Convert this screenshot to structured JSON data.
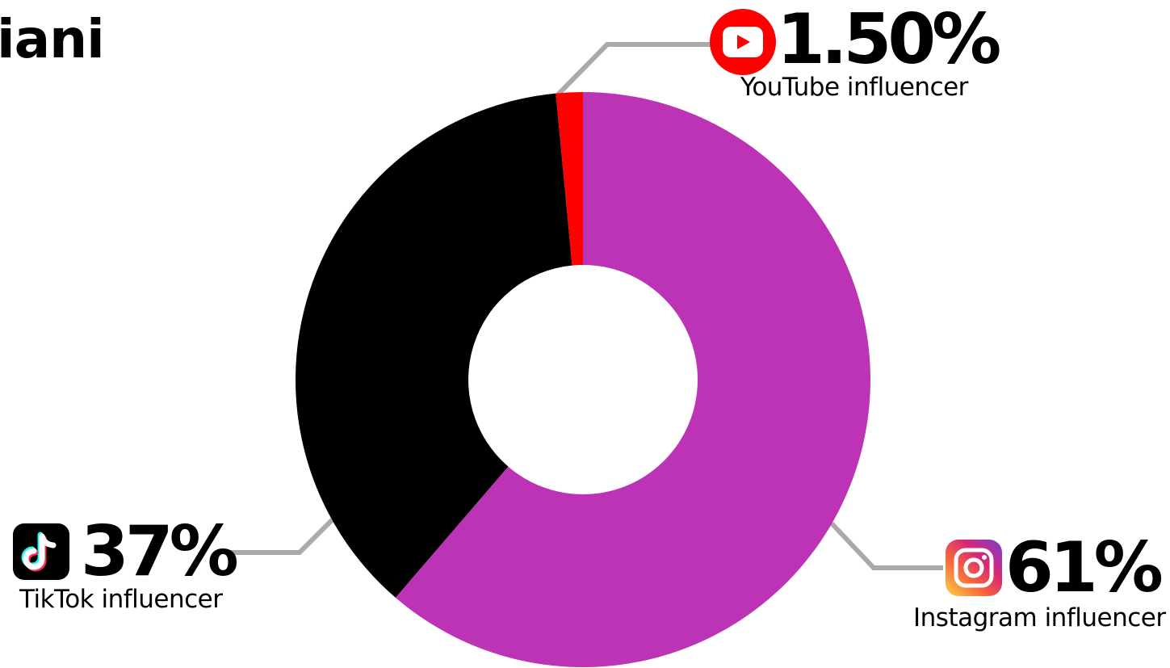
{
  "header": {
    "title": "iani"
  },
  "chart_data": {
    "type": "pie",
    "donut": true,
    "title": "iani",
    "slices": [
      {
        "label": "Instagram influencer",
        "value": 61,
        "display": "61%",
        "color": "#bc33b5",
        "icon": "instagram-icon"
      },
      {
        "label": "TikTok influencer",
        "value": 37,
        "display": "37%",
        "color": "#000000",
        "icon": "tiktok-icon"
      },
      {
        "label": "YouTube influencer",
        "value": 1.5,
        "display": "1.50%",
        "color": "#ff0000",
        "icon": "youtube-icon"
      }
    ],
    "slice_order": "clockwise from top: Instagram, TikTok, YouTube",
    "leader_line_color": "#aaaaaa"
  }
}
